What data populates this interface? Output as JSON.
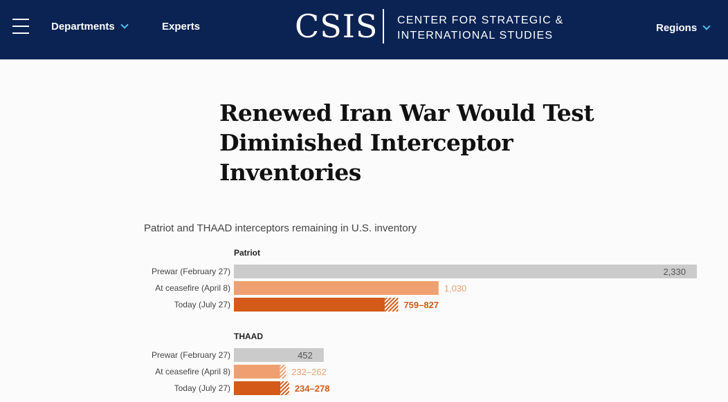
{
  "header": {
    "menu_label": "Menu",
    "nav": [
      {
        "label": "Departments",
        "has_dropdown": true
      },
      {
        "label": "Experts",
        "has_dropdown": false
      }
    ],
    "logo": {
      "wordmark": "CSIS",
      "line1": "CENTER FOR STRATEGIC &",
      "line2": "INTERNATIONAL STUDIES"
    },
    "regions_label": "Regions",
    "colors": {
      "background": "#0b2353",
      "chevron": "#4cc3f0"
    }
  },
  "article": {
    "title_lines": [
      "Renewed Iran War Would Test",
      "Diminished Interceptor",
      "Inventories"
    ]
  },
  "chart_data": {
    "type": "bar",
    "orientation": "horizontal",
    "subtitle": "Patriot and THAAD interceptors remaining in U.S. inventory",
    "xlim": [
      0,
      2330
    ],
    "colors": {
      "prewar": "#cbcbcb",
      "ceasefire": "#f0a070",
      "today": "#d35a18"
    },
    "groups": [
      {
        "name": "Patriot",
        "bars": [
          {
            "label": "Prewar (February 27)",
            "min": 2330,
            "max": 2330,
            "value_label": "2,330",
            "series": "prewar"
          },
          {
            "label": "At ceasefire (April 8)",
            "min": 1030,
            "max": 1030,
            "value_label": "1,030",
            "series": "ceasefire"
          },
          {
            "label": "Today (July 27)",
            "min": 759,
            "max": 827,
            "value_label": "759–827",
            "series": "today"
          }
        ]
      },
      {
        "name": "THAAD",
        "bars": [
          {
            "label": "Prewar (February 27)",
            "min": 452,
            "max": 452,
            "value_label": "452",
            "series": "prewar"
          },
          {
            "label": "At ceasefire (April 8)",
            "min": 232,
            "max": 262,
            "value_label": "232–262",
            "series": "ceasefire"
          },
          {
            "label": "Today (July 27)",
            "min": 234,
            "max": 278,
            "value_label": "234–278",
            "series": "today"
          }
        ]
      }
    ]
  }
}
